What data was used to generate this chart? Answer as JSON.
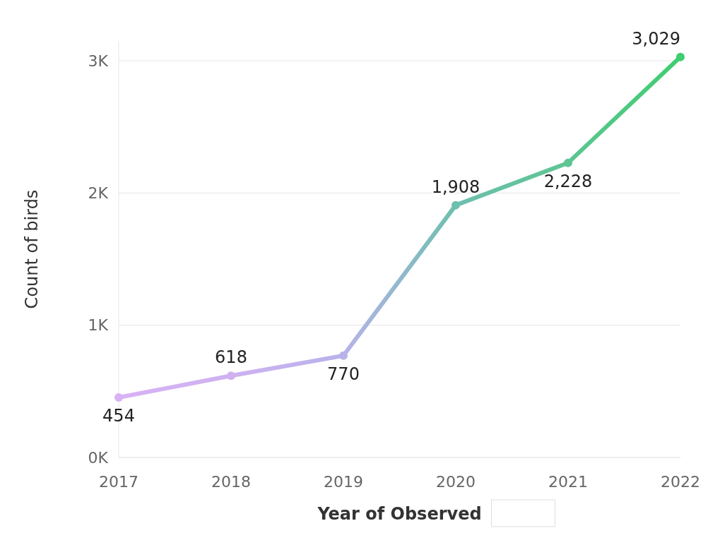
{
  "chart_data": {
    "type": "line",
    "xlabel": "Year of Observed",
    "ylabel": "Count of birds",
    "x": [
      2017,
      2018,
      2019,
      2020,
      2021,
      2022
    ],
    "values": [
      454,
      618,
      770,
      1908,
      2228,
      3029
    ],
    "value_labels": [
      "454",
      "618",
      "770",
      "1,908",
      "2,228",
      "3,029"
    ],
    "colors": [
      "#d8b2f5",
      "#cfb1f0",
      "#b7b3ea",
      "#6dbfae",
      "#5dc592",
      "#3dce70"
    ],
    "xlim": [
      2017,
      2022
    ],
    "xticks": [
      2017,
      2018,
      2019,
      2020,
      2021,
      2022
    ],
    "ylim": [
      0,
      3150
    ],
    "yticks": [
      {
        "value": 0,
        "label": "0K"
      },
      {
        "value": 1000,
        "label": "1K"
      },
      {
        "value": 2000,
        "label": "2K"
      },
      {
        "value": 3000,
        "label": "3K"
      }
    ],
    "grid": "y",
    "marker": "circle",
    "line_style": "solid"
  }
}
